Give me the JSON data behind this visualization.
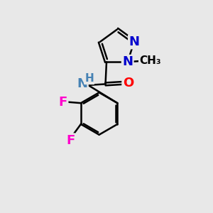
{
  "background_color": "#e8e8e8",
  "bond_color": "#000000",
  "bond_width": 1.8,
  "atom_colors": {
    "N": "#0000cd",
    "O": "#ff0000",
    "F": "#ff00cc",
    "C": "#000000",
    "H": "#4682b4"
  }
}
